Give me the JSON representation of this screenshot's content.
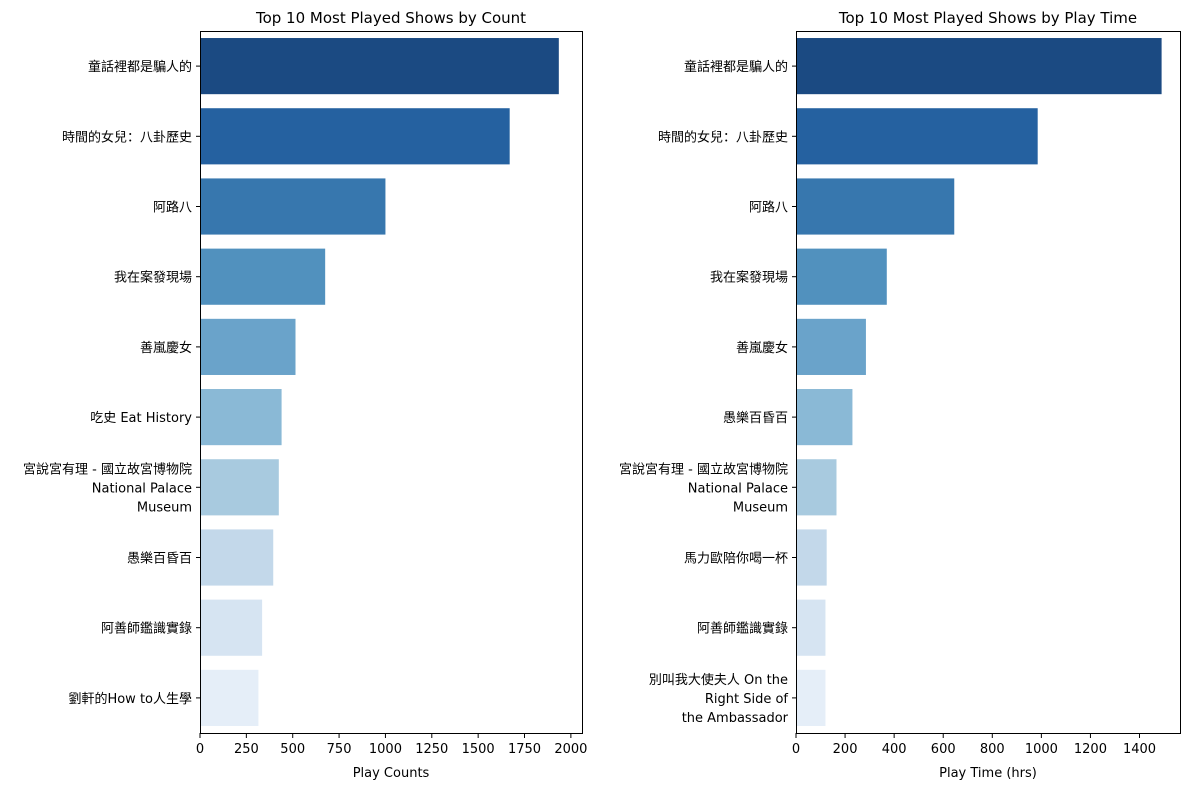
{
  "chart_data": [
    {
      "type": "bar",
      "orientation": "horizontal",
      "title": "Top 10 Most Played Shows by Count",
      "xlabel": "Play Counts",
      "ylabel": "",
      "xlim": [
        0,
        2060
      ],
      "xticks": [
        0,
        250,
        500,
        750,
        1000,
        1250,
        1500,
        1750,
        2000
      ],
      "grid": false,
      "categories": [
        "童話裡都是騙人的",
        "時間的女兒：八卦歷史",
        "阿路八",
        "我在案發現場",
        "善嵐慶女",
        "吃史 Eat History",
        "宮說宮有理 - 國立故宮博物院 National Palace Museum",
        "愚樂百昏百",
        "阿善師鑑識實錄",
        "劉軒的How to人生學"
      ],
      "category_lines": [
        [
          "童話裡都是騙人的"
        ],
        [
          "時間的女兒：八卦歷史"
        ],
        [
          "阿路八"
        ],
        [
          "我在案發現場"
        ],
        [
          "善嵐慶女"
        ],
        [
          "吃史 Eat History"
        ],
        [
          "宮說宮有理 - 國立故宮博物院",
          "National Palace",
          "Museum"
        ],
        [
          "愚樂百昏百"
        ],
        [
          "阿善師鑑識實錄"
        ],
        [
          "劉軒的How to人生學"
        ]
      ],
      "values": [
        1935,
        1670,
        1000,
        675,
        515,
        440,
        425,
        395,
        335,
        315
      ],
      "colors": [
        "#1b4a82",
        "#2561a0",
        "#3777ae",
        "#5191be",
        "#6aa3ca",
        "#8ab9d6",
        "#a8cadf",
        "#c3d8ea",
        "#d6e4f2",
        "#e5eef8"
      ]
    },
    {
      "type": "bar",
      "orientation": "horizontal",
      "title": "Top 10 Most Played Shows by Play Time",
      "xlabel": "Play Time (hrs)",
      "ylabel": "",
      "xlim": [
        0,
        1565
      ],
      "xticks": [
        0,
        200,
        400,
        600,
        800,
        1000,
        1200,
        1400
      ],
      "grid": false,
      "categories": [
        "童話裡都是騙人的",
        "時間的女兒：八卦歷史",
        "阿路八",
        "我在案發現場",
        "善嵐慶女",
        "愚樂百昏百",
        "宮說宮有理 - 國立故宮博物院 National Palace Museum",
        "馬力歐陪你喝一杯",
        "阿善師鑑識實錄",
        "別叫我大使夫人 On the Right Side of the Ambassador"
      ],
      "category_lines": [
        [
          "童話裡都是騙人的"
        ],
        [
          "時間的女兒：八卦歷史"
        ],
        [
          "阿路八"
        ],
        [
          "我在案發現場"
        ],
        [
          "善嵐慶女"
        ],
        [
          "愚樂百昏百"
        ],
        [
          "宮說宮有理 - 國立故宮博物院",
          "National Palace",
          "Museum"
        ],
        [
          "馬力歐陪你喝一杯"
        ],
        [
          "阿善師鑑識實錄"
        ],
        [
          "別叫我大使夫人 On the",
          "Right Side of",
          "the Ambassador"
        ]
      ],
      "values": [
        1490,
        985,
        645,
        370,
        285,
        230,
        165,
        125,
        120,
        120
      ],
      "colors": [
        "#1b4a82",
        "#2561a0",
        "#3777ae",
        "#5191be",
        "#6aa3ca",
        "#8ab9d6",
        "#a8cadf",
        "#c3d8ea",
        "#d6e4f2",
        "#e5eef8"
      ]
    }
  ]
}
